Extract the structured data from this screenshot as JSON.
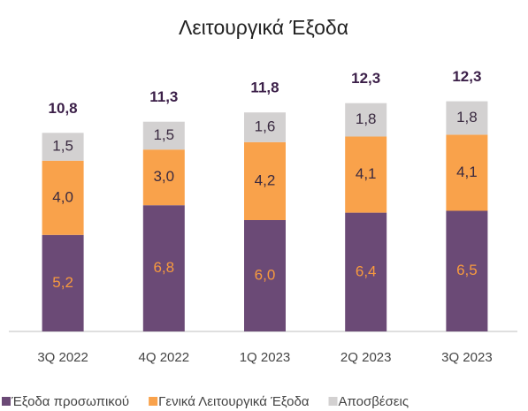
{
  "chart_data": {
    "type": "stacked_bar",
    "title": "Λειτουργικά Έξοδα",
    "categories": [
      "3Q 2022",
      "4Q 2022",
      "1Q 2023",
      "2Q 2023",
      "3Q 2023"
    ],
    "series": [
      {
        "name": "Έξοδα προσωπικού",
        "color": "#6b4a76",
        "label_color": "#f79a3e",
        "values": [
          5.2,
          6.8,
          6.0,
          6.4,
          6.5
        ],
        "value_labels": [
          "5,2",
          "6,8",
          "6,0",
          "6,4",
          "6,5"
        ]
      },
      {
        "name": "Γενικά Λειτουργικά Έξοδα",
        "color": "#f9a24b",
        "label_color": "#3a2a40",
        "values": [
          4.0,
          3.0,
          4.2,
          4.1,
          4.1
        ],
        "value_labels": [
          "4,0",
          "3,0",
          "4,2",
          "4,1",
          "4,1"
        ]
      },
      {
        "name": "Αποσβέσεις",
        "color": "#d3d1d1",
        "label_color": "#3a2a40",
        "values": [
          1.5,
          1.5,
          1.6,
          1.8,
          1.8
        ],
        "value_labels": [
          "1,5",
          "1,5",
          "1,6",
          "1,8",
          "1,8"
        ]
      }
    ],
    "totals": [
      10.8,
      11.3,
      11.8,
      12.3,
      12.3
    ],
    "total_labels": [
      "10,8",
      "11,3",
      "11,8",
      "12,3",
      "12,3"
    ],
    "ylim": [
      0,
      14
    ]
  }
}
